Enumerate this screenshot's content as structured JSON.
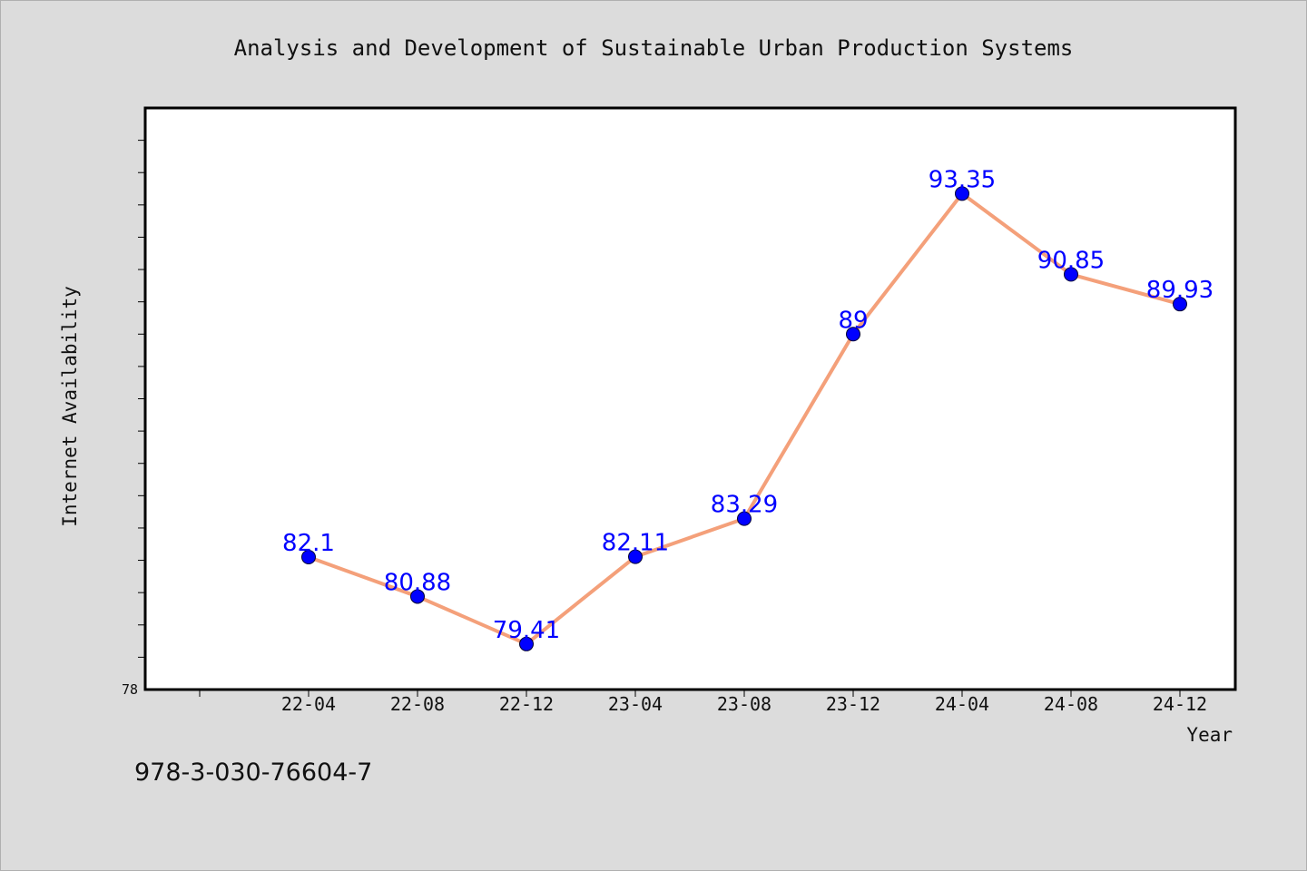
{
  "chart_data": {
    "type": "line",
    "title": "Analysis and Development of Sustainable Urban Production Systems",
    "xlabel": "Year",
    "ylabel": "Internet Availability",
    "categories": [
      "22-04",
      "22-08",
      "22-12",
      "23-04",
      "23-08",
      "23-12",
      "24-04",
      "24-08",
      "24-12"
    ],
    "series": [
      {
        "values": [
          82.1,
          80.88,
          79.41,
          82.11,
          83.29,
          89,
          93.35,
          90.85,
          89.93
        ],
        "labels": [
          "82.1",
          "80.88",
          "79.41",
          "82.11",
          "83.29",
          "89",
          "93.35",
          "90.85",
          "89.93"
        ]
      }
    ],
    "ylim": [
      78,
      96
    ],
    "ytick_labels": [
      "78"
    ],
    "line_color": "#f4a07a",
    "marker_color": "#0000ff",
    "label_color": "#0000ff",
    "grid": false,
    "legend": "none"
  },
  "footer": {
    "isbn": "978-3-030-76604-7"
  }
}
